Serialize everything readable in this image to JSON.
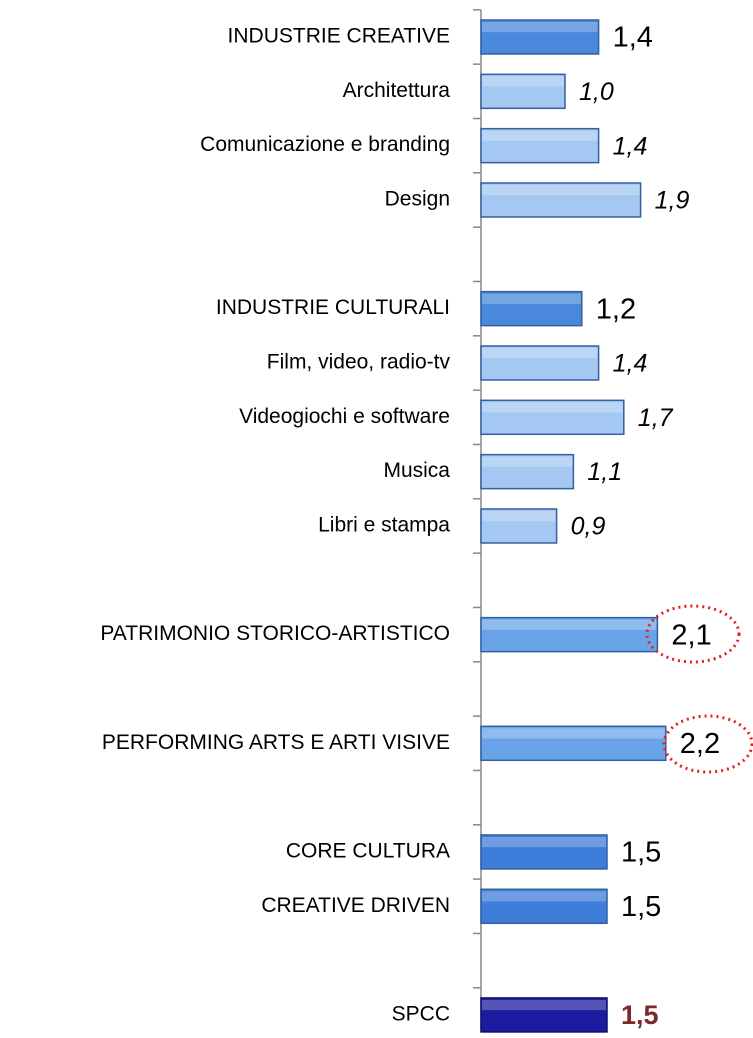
{
  "chart_data": {
    "type": "hbar",
    "categories": [
      "INDUSTRIE CREATIVE",
      "Architettura",
      "Comunicazione e branding",
      "Design",
      null,
      "INDUSTRIE CULTURALI",
      "Film, video, radio-tv",
      "Videogiochi e software",
      "Musica",
      "Libri e stampa",
      null,
      "PATRIMONIO STORICO-ARTISTICO",
      null,
      "PERFORMING ARTS E ARTI VISIVE",
      null,
      "CORE CULTURA",
      "CREATIVE DRIVEN",
      null,
      "SPCC"
    ],
    "values": [
      1.4,
      1.0,
      1.4,
      1.9,
      null,
      1.2,
      1.4,
      1.7,
      1.1,
      0.9,
      null,
      2.1,
      null,
      2.2,
      null,
      1.5,
      1.5,
      null,
      1.5
    ],
    "value_labels": [
      "1,4",
      "1,0",
      "1,4",
      "1,9",
      null,
      "1,2",
      "1,4",
      "1,7",
      "1,1",
      "0,9",
      null,
      "2,1",
      null,
      "2,2",
      null,
      "1,5",
      "1,5",
      null,
      "1,5"
    ],
    "colors": [
      "#4a88dc",
      "#a4c8f2",
      "#a4c8f2",
      "#a4c8f2",
      null,
      "#4a88dc",
      "#a4c8f2",
      "#a4c8f2",
      "#a4c8f2",
      "#a4c8f2",
      null,
      "#6aa4e8",
      null,
      "#6aa4e8",
      null,
      "#3f7ddb",
      "#3f7ddb",
      null,
      "#1c1ca0"
    ]
  }
}
